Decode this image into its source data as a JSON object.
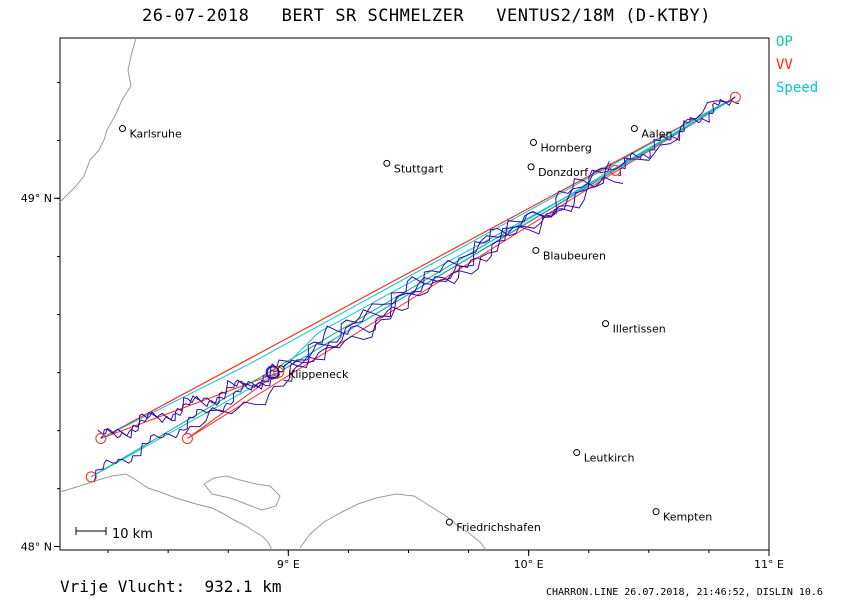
{
  "header": {
    "date": "26-07-2018",
    "pilot": "BERT SR SCHMELZER",
    "glider": "VENTUS2/18M (D-KTBY)"
  },
  "legend": {
    "op": "OP",
    "vv": "VV",
    "speed": "Speed",
    "colors": {
      "op": "#00d29a",
      "vv": "#ff2a18",
      "speed": "#00c4e6",
      "track": "#3a0aa0"
    }
  },
  "map": {
    "lon_range": [
      8.05,
      11.0
    ],
    "lat_range": [
      47.99,
      49.46
    ],
    "axis": {
      "lon_ticks": [
        {
          "lon": 9,
          "label": "9° E"
        },
        {
          "lon": 10,
          "label": "10° E"
        },
        {
          "lon": 11,
          "label": "11° E"
        }
      ],
      "lat_ticks": [
        {
          "lat": 49,
          "label": "49° N"
        },
        {
          "lat": 48,
          "label": "48° N"
        }
      ]
    },
    "scale_bar": {
      "label": "10 km"
    },
    "towns": [
      {
        "name": "Karlsruhe",
        "lon": 8.31,
        "lat": 49.2
      },
      {
        "name": "Stuttgart",
        "lon": 9.41,
        "lat": 49.1
      },
      {
        "name": "Hornberg",
        "lon": 10.02,
        "lat": 49.16
      },
      {
        "name": "Donzdorf",
        "lon": 10.01,
        "lat": 49.09
      },
      {
        "name": "Aalen",
        "lon": 10.44,
        "lat": 49.2
      },
      {
        "name": "Blaubeuren",
        "lon": 10.03,
        "lat": 48.85
      },
      {
        "name": "Illertissen",
        "lon": 10.32,
        "lat": 48.64
      },
      {
        "name": "Klippeneck",
        "lon": 8.97,
        "lat": 48.51
      },
      {
        "name": "Leutkirch",
        "lon": 10.2,
        "lat": 48.27
      },
      {
        "name": "Friedrichshafen",
        "lon": 9.67,
        "lat": 48.07
      },
      {
        "name": "Kempten",
        "lon": 10.53,
        "lat": 48.1
      }
    ],
    "turnpoints": [
      {
        "lon": 8.22,
        "lat": 48.31
      },
      {
        "lon": 8.18,
        "lat": 48.2
      },
      {
        "lon": 8.58,
        "lat": 48.31
      },
      {
        "lon": 8.96,
        "lat": 48.5
      },
      {
        "lon": 10.36,
        "lat": 49.08
      },
      {
        "lon": 10.86,
        "lat": 49.29
      }
    ]
  },
  "summary": {
    "label": "Vrije Vlucht:",
    "distance": "932.1 km"
  },
  "footer": {
    "text": "CHARRON.LINE 26.07.2018, 21:46:52, DISLIN 10.6"
  }
}
